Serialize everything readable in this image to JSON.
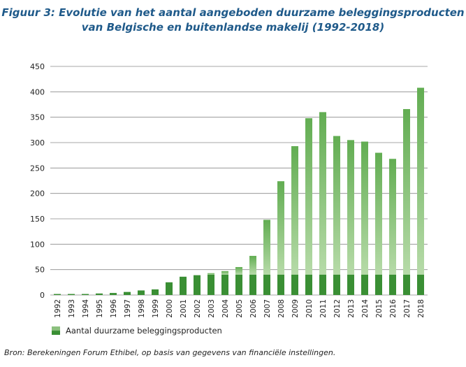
{
  "chart_data": {
    "type": "bar",
    "title_line1": "Figuur 3: Evolutie van het aantal aangeboden duurzame beleggingsproducten",
    "title_line2": "van Belgische en buitenlandse makelij (1992-2018)",
    "categories": [
      "1992",
      "1993",
      "1994",
      "1995",
      "1996",
      "1997",
      "1998",
      "1999",
      "2000",
      "2001",
      "2002",
      "2003",
      "2004",
      "2005",
      "2006",
      "2007",
      "2008",
      "2009",
      "2010",
      "2011",
      "2012",
      "2013",
      "2014",
      "2015",
      "2016",
      "2017",
      "2018"
    ],
    "series": [
      {
        "name": "Aantal duurzame beleggingsproducten",
        "values": [
          2,
          2,
          2,
          3,
          4,
          6,
          9,
          11,
          25,
          36,
          39,
          43,
          47,
          55,
          77,
          148,
          224,
          293,
          348,
          360,
          313,
          305,
          302,
          280,
          268,
          366,
          408
        ]
      }
    ],
    "yticks": [
      0,
      50,
      100,
      150,
      200,
      250,
      300,
      350,
      400,
      450
    ],
    "ylim": [
      0,
      450
    ],
    "xlabel": "",
    "ylabel": "",
    "grid": true,
    "legend_position": "bottom-left",
    "colors": {
      "dark": "#3a8f34",
      "light_top": "#62ad52",
      "light_bottom": "#b7dba9",
      "grid": "#8a8a8a",
      "title": "#1f5a8a"
    }
  },
  "source_text": "Bron: Berekeningen Forum Ethibel, op basis van gegevens van financiële instellingen."
}
